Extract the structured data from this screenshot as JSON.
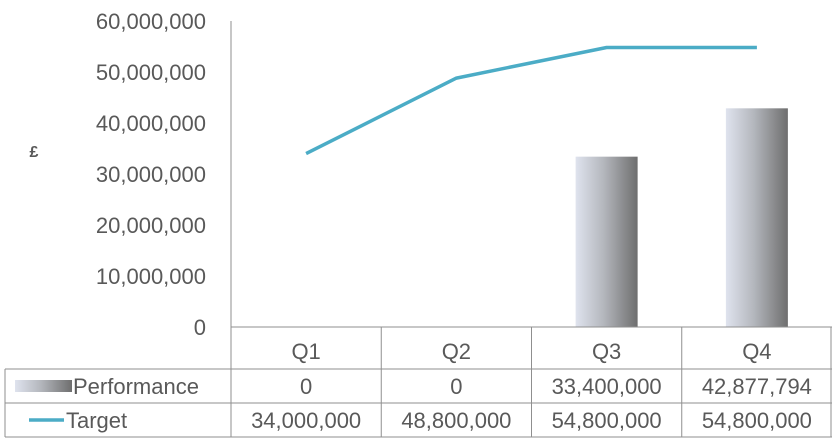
{
  "chart_data": {
    "type": "bar",
    "categories": [
      "Q1",
      "Q2",
      "Q3",
      "Q4"
    ],
    "series": [
      {
        "name": "Performance",
        "type": "bar",
        "values": [
          0,
          0,
          33400000,
          42877794
        ],
        "labels": [
          "0",
          "0",
          "33,400,000",
          "42,877,794"
        ],
        "color": "#8c8c8c"
      },
      {
        "name": "Target",
        "type": "line",
        "values": [
          34000000,
          48800000,
          54800000,
          54800000
        ],
        "labels": [
          "34,000,000",
          "48,800,000",
          "54,800,000",
          "54,800,000"
        ],
        "color": "#4bacc6"
      }
    ],
    "ylabel": "£",
    "ylim": [
      0,
      60000000
    ],
    "yticks": [
      "0",
      "10,000,000",
      "20,000,000",
      "30,000,000",
      "40,000,000",
      "50,000,000",
      "60,000,000"
    ],
    "grid": false,
    "legend": "data-table",
    "data_table": true
  }
}
